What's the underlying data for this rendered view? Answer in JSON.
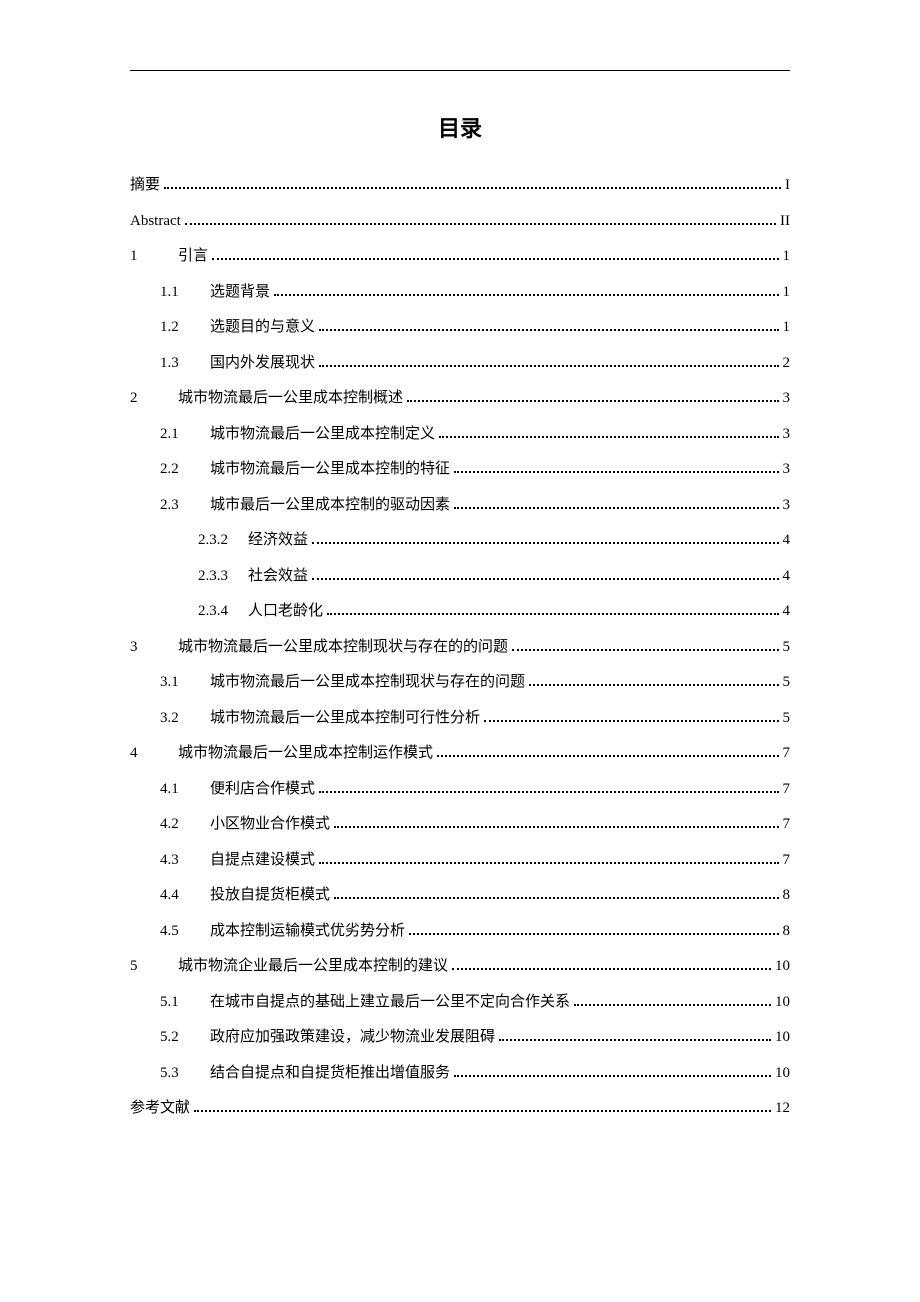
{
  "title": "目录",
  "entries": [
    {
      "indent": 0,
      "number": "",
      "text": "摘要",
      "page": "I"
    },
    {
      "indent": 0,
      "number": "",
      "text": "Abstract",
      "page": "II"
    },
    {
      "indent": 0,
      "number": "1",
      "text": "引言",
      "page": "1"
    },
    {
      "indent": 1,
      "number": "1.1",
      "text": "选题背景",
      "page": "1"
    },
    {
      "indent": 1,
      "number": "1.2",
      "text": "选题目的与意义",
      "page": "1"
    },
    {
      "indent": 1,
      "number": "1.3",
      "text": "国内外发展现状",
      "page": "2"
    },
    {
      "indent": 0,
      "number": "2",
      "text": "城市物流最后一公里成本控制概述",
      "page": "3"
    },
    {
      "indent": 1,
      "number": "2.1",
      "text": "城市物流最后一公里成本控制定义",
      "page": "3"
    },
    {
      "indent": 1,
      "number": "2.2",
      "text": "城市物流最后一公里成本控制的特征",
      "page": "3"
    },
    {
      "indent": 1,
      "number": "2.3",
      "text": "城市最后一公里成本控制的驱动因素",
      "page": "3"
    },
    {
      "indent": 2,
      "number": "2.3.2",
      "text": "经济效益",
      "page": "4"
    },
    {
      "indent": 2,
      "number": "2.3.3",
      "text": "社会效益",
      "page": "4"
    },
    {
      "indent": 2,
      "number": "2.3.4",
      "text": "人口老龄化",
      "page": "4"
    },
    {
      "indent": 0,
      "number": "3",
      "text": "城市物流最后一公里成本控制现状与存在的的问题",
      "page": "5"
    },
    {
      "indent": 1,
      "number": "3.1",
      "text": "城市物流最后一公里成本控制现状与存在的问题",
      "page": "5"
    },
    {
      "indent": 1,
      "number": "3.2",
      "text": "城市物流最后一公里成本控制可行性分析",
      "page": "5"
    },
    {
      "indent": 0,
      "number": "4",
      "text": "城市物流最后一公里成本控制运作模式",
      "page": "7"
    },
    {
      "indent": 1,
      "number": "4.1",
      "text": "便利店合作模式",
      "page": "7"
    },
    {
      "indent": 1,
      "number": "4.2",
      "text": "小区物业合作模式",
      "page": "7"
    },
    {
      "indent": 1,
      "number": "4.3",
      "text": "自提点建设模式",
      "page": "7"
    },
    {
      "indent": 1,
      "number": "4.4",
      "text": "投放自提货柜模式",
      "page": "8"
    },
    {
      "indent": 1,
      "number": "4.5",
      "text": "成本控制运输模式优劣势分析",
      "page": "8"
    },
    {
      "indent": 0,
      "number": "5",
      "text": "城市物流企业最后一公里成本控制的建议",
      "page": "10"
    },
    {
      "indent": 1,
      "number": "5.1",
      "text": "在城市自提点的基础上建立最后一公里不定向合作关系",
      "page": "10"
    },
    {
      "indent": 1,
      "number": "5.2",
      "text": "政府应加强政策建设，减少物流业发展阻碍",
      "page": "10"
    },
    {
      "indent": 1,
      "number": "5.3",
      "text": "结合自提点和自提货柜推出增值服务",
      "page": "10"
    },
    {
      "indent": 0,
      "number": "",
      "text": "参考文献",
      "page": "12"
    }
  ]
}
